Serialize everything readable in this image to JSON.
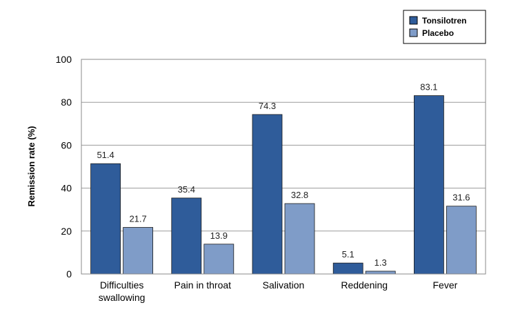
{
  "chart_data": {
    "type": "bar",
    "categories": [
      [
        "Difficulties",
        "swallowing"
      ],
      [
        "Pain in throat"
      ],
      [
        "Salivation"
      ],
      [
        "Reddening"
      ],
      [
        "Fever"
      ]
    ],
    "series": [
      {
        "name": "Tonsilotren",
        "values": [
          51.4,
          35.4,
          74.3,
          5.1,
          83.1
        ],
        "color": "#2f5c9a"
      },
      {
        "name": "Placebo",
        "values": [
          21.7,
          13.9,
          32.8,
          1.3,
          31.6
        ],
        "color": "#7f9cc8"
      }
    ],
    "data_labels": [
      [
        "51.4",
        "35.4",
        "74.3",
        "5.1",
        "83.1"
      ],
      [
        "21.7",
        "13.9",
        "32.8",
        "1.3",
        "31.6"
      ]
    ],
    "ylabel": "Remission rate (%)",
    "ylim": [
      0,
      100
    ],
    "yticks": [
      0,
      20,
      40,
      60,
      80,
      100
    ],
    "ytick_labels": [
      "0",
      "20",
      "40",
      "60",
      "80",
      "100"
    ],
    "grid": true,
    "legend_position": "top-right"
  }
}
